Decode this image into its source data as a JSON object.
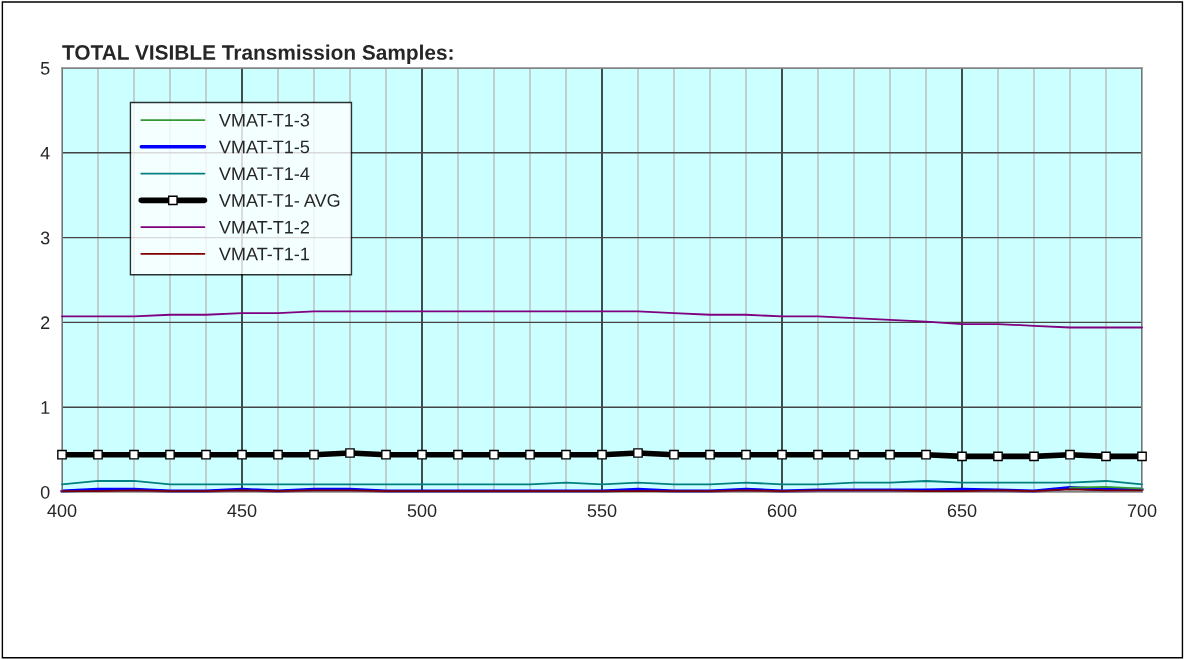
{
  "chart_data": {
    "type": "line",
    "title": "TOTAL VISIBLE Transmission Samples:",
    "x": [
      400,
      410,
      420,
      430,
      440,
      450,
      460,
      470,
      480,
      490,
      500,
      510,
      520,
      530,
      540,
      550,
      560,
      570,
      580,
      590,
      600,
      610,
      620,
      630,
      640,
      650,
      660,
      670,
      680,
      690,
      700
    ],
    "xlim": [
      400,
      700
    ],
    "xticks": [
      400,
      {
        "value": 410,
        "label": null
      },
      {
        "value": 420,
        "label": null
      },
      {
        "value": 430,
        "label": null
      },
      {
        "value": 440,
        "label": null
      },
      450,
      {
        "value": 460,
        "label": null
      },
      {
        "value": 470,
        "label": null
      },
      {
        "value": 480,
        "label": null
      },
      {
        "value": 490,
        "label": null
      },
      500,
      {
        "value": 510,
        "label": null
      },
      {
        "value": 520,
        "label": null
      },
      {
        "value": 530,
        "label": null
      },
      {
        "value": 540,
        "label": null
      },
      550,
      {
        "value": 560,
        "label": null
      },
      {
        "value": 570,
        "label": null
      },
      {
        "value": 580,
        "label": null
      },
      {
        "value": 590,
        "label": null
      },
      600,
      {
        "value": 610,
        "label": null
      },
      {
        "value": 620,
        "label": null
      },
      {
        "value": 630,
        "label": null
      },
      {
        "value": 640,
        "label": null
      },
      650,
      {
        "value": 660,
        "label": null
      },
      {
        "value": 670,
        "label": null
      },
      {
        "value": 680,
        "label": null
      },
      {
        "value": 690,
        "label": null
      },
      700
    ],
    "ylim": [
      0,
      5
    ],
    "yticks": [
      0,
      1,
      2,
      3,
      4,
      5
    ],
    "grid": true,
    "legend": "top left",
    "line_style": "solid",
    "series": [
      {
        "name": "VMAT-T1-3",
        "color": "#339933",
        "values": [
          null,
          null,
          null,
          null,
          null,
          null,
          null,
          null,
          null,
          null,
          null,
          null,
          null,
          null,
          null,
          null,
          null,
          null,
          null,
          null,
          null,
          null,
          null,
          null,
          null,
          null,
          null,
          null,
          0.05,
          0.06,
          0.04
        ]
      },
      {
        "name": "VMAT-T1-5",
        "color": "#0000ff",
        "values": [
          0.01,
          0.03,
          0.03,
          0.01,
          0.01,
          0.03,
          0.01,
          0.03,
          0.03,
          0.01,
          0.01,
          0.01,
          0.01,
          0.01,
          0.01,
          0.01,
          0.03,
          0.01,
          0.01,
          0.03,
          0.01,
          0.02,
          0.02,
          0.02,
          0.02,
          0.03,
          0.02,
          0.01,
          0.05,
          0.03,
          0.03
        ]
      },
      {
        "name": "VMAT-T1-4",
        "color": "#008080",
        "values": [
          0.09,
          0.13,
          0.13,
          0.09,
          0.09,
          0.09,
          0.09,
          0.09,
          0.09,
          0.09,
          0.09,
          0.09,
          0.09,
          0.09,
          0.11,
          0.09,
          0.11,
          0.09,
          0.09,
          0.11,
          0.09,
          0.09,
          0.11,
          0.11,
          0.13,
          0.11,
          0.11,
          0.11,
          0.11,
          0.13,
          0.09
        ]
      },
      {
        "name": "VMAT-T1- AVG",
        "color": "#000000",
        "marker": "square",
        "values": [
          0.44,
          0.44,
          0.44,
          0.44,
          0.44,
          0.44,
          0.44,
          0.44,
          0.46,
          0.44,
          0.44,
          0.44,
          0.44,
          0.44,
          0.44,
          0.44,
          0.46,
          0.44,
          0.44,
          0.44,
          0.44,
          0.44,
          0.44,
          0.44,
          0.44,
          0.42,
          0.42,
          0.42,
          0.44,
          0.42,
          0.42
        ]
      },
      {
        "name": "VMAT-T1-2",
        "color": "#800080",
        "values": [
          2.07,
          2.07,
          2.07,
          2.09,
          2.09,
          2.11,
          2.11,
          2.13,
          2.13,
          2.13,
          2.13,
          2.13,
          2.13,
          2.13,
          2.13,
          2.13,
          2.13,
          2.11,
          2.09,
          2.09,
          2.07,
          2.07,
          2.05,
          2.03,
          2.01,
          1.98,
          1.98,
          1.96,
          1.94,
          1.94,
          1.94
        ]
      },
      {
        "name": "VMAT-T1-1",
        "color": "#800000",
        "values": [
          0.01,
          0.01,
          0.02,
          0.01,
          0.01,
          0.02,
          0.01,
          0.02,
          0.02,
          0.01,
          0.01,
          0.01,
          0.01,
          0.01,
          0.01,
          0.01,
          0.01,
          0.01,
          0.01,
          0.02,
          0.01,
          0.02,
          0.02,
          0.02,
          0.01,
          0.01,
          0.02,
          0.01,
          0.03,
          0.02,
          0.02
        ]
      }
    ]
  }
}
